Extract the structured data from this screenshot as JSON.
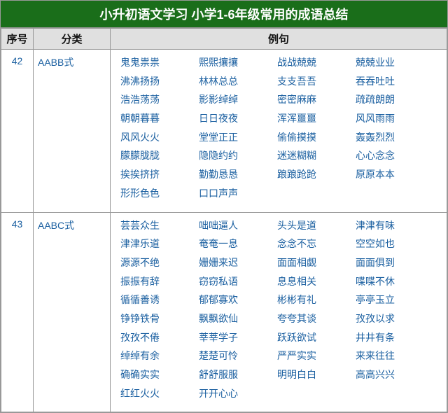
{
  "title": "小升初语文学习 小学1-6年级常用的成语总结",
  "headers": {
    "num": "序号",
    "category": "分类",
    "examples": "例句"
  },
  "rows": [
    {
      "num": "42",
      "category": "AABB式",
      "lines": [
        [
          "鬼鬼祟祟",
          "熙熙攘攘",
          "战战兢兢",
          "兢兢业业"
        ],
        [
          "沸沸扬扬",
          "林林总总",
          "支支吾吾",
          "吞吞吐吐"
        ],
        [
          "浩浩荡荡",
          "影影绰绰",
          "密密麻麻",
          "疏疏朗朗"
        ],
        [
          "朝朝暮暮",
          "日日夜夜",
          "浑浑噩噩",
          "风风雨雨"
        ],
        [
          "风风火火",
          "堂堂正正",
          "偷偷摸摸",
          "轰轰烈烈"
        ],
        [
          "朦朦胧胧",
          "隐隐约约",
          "迷迷糊糊",
          "心心念念"
        ],
        [
          "挨挨挤挤",
          "勤勤恳恳",
          "踉踉跄跄",
          "原原本本"
        ],
        [
          "形形色色",
          "口口声声"
        ]
      ]
    },
    {
      "num": "43",
      "category": "AABC式",
      "lines": [
        [
          "芸芸众生",
          "咄咄逼人",
          "头头是道",
          "津津有味"
        ],
        [
          "津津乐道",
          "奄奄一息",
          "念念不忘",
          "空空如也"
        ],
        [
          "源源不绝",
          "姗姗来迟",
          "面面相觑",
          "面面俱到"
        ],
        [
          "振振有辞",
          "窃窃私语",
          "息息相关",
          "喋喋不休"
        ],
        [
          "循循善诱",
          "郁郁寡欢",
          "彬彬有礼",
          "亭亭玉立"
        ],
        [
          "铮铮铁骨",
          "飘飘欲仙",
          "夸夸其谈",
          "孜孜以求"
        ],
        [
          "孜孜不倦",
          "莘莘学子",
          "跃跃欲试",
          "井井有条"
        ],
        [
          "绰绰有余",
          "楚楚可怜",
          "严严实实",
          "来来往往"
        ],
        [
          "确确实实",
          "舒舒服服",
          "明明白白",
          "高高兴兴"
        ],
        [
          "红红火火",
          "开开心心"
        ]
      ]
    }
  ]
}
